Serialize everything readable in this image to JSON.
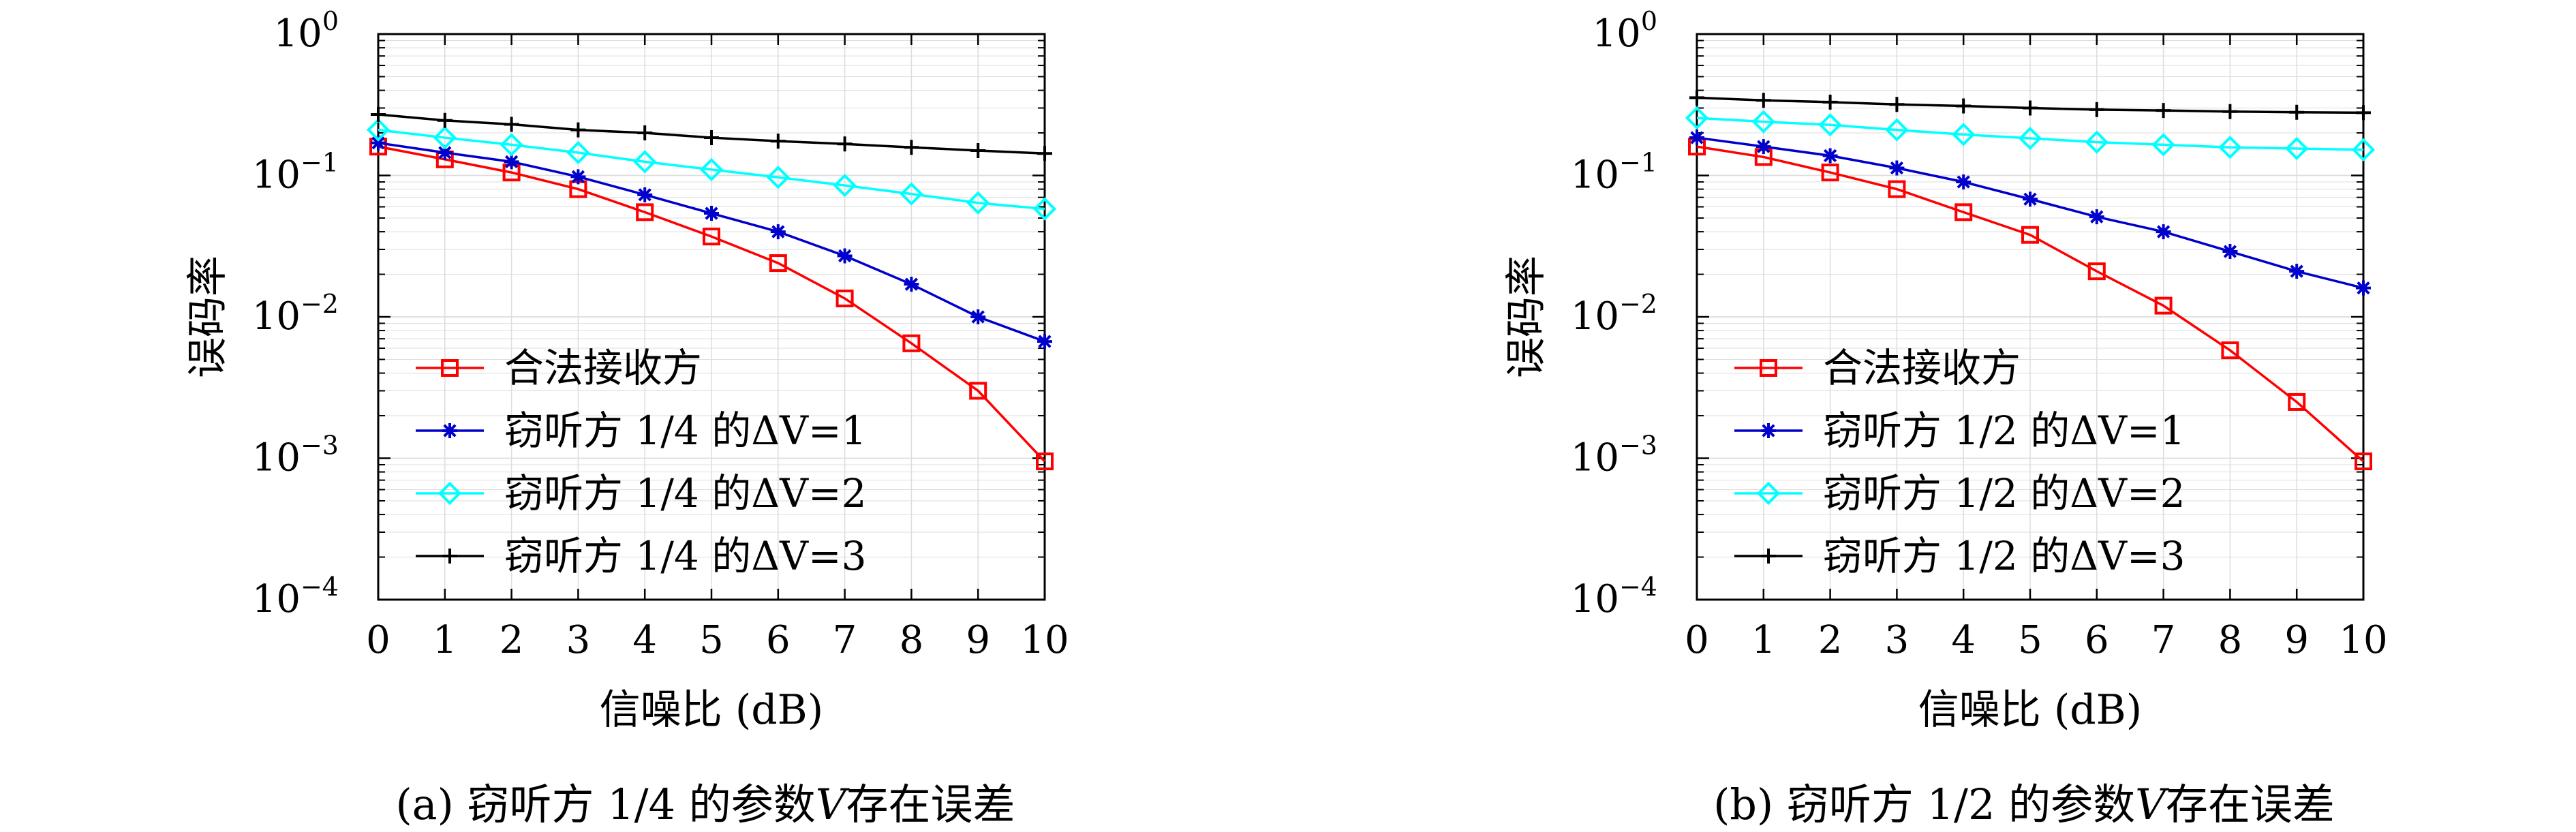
{
  "colors": {
    "legal_receiver": "#ff0000",
    "dv1": "#0000cc",
    "dv2": "#00ffff",
    "dv3": "#000000",
    "grid": "#dddddd",
    "axis": "#000000"
  },
  "captions": [
    {
      "label": "(a)",
      "text_before_v": "窃听方 1/4 的参数",
      "v": "V",
      "text_after_v": "存在误差"
    },
    {
      "label": "(b)",
      "text_before_v": "窃听方 1/2 的参数",
      "v": "V",
      "text_after_v": "存在误差"
    }
  ],
  "chart_data": [
    {
      "type": "line",
      "xlabel": "信噪比 (dB)",
      "ylabel": "误码率",
      "yscale": "log",
      "ylim": [
        0.0001,
        1
      ],
      "xlim": [
        0,
        10
      ],
      "xticks": [
        "0",
        "1",
        "2",
        "3",
        "4",
        "5",
        "6",
        "7",
        "8",
        "9",
        "10"
      ],
      "yticks": [
        {
          "value": 1,
          "base": "10",
          "exp": "0"
        },
        {
          "value": 0.1,
          "base": "10",
          "exp": "−1"
        },
        {
          "value": 0.01,
          "base": "10",
          "exp": "−2"
        },
        {
          "value": 0.001,
          "base": "10",
          "exp": "−3"
        },
        {
          "value": 0.0001,
          "base": "10",
          "exp": "−4"
        }
      ],
      "grid": true,
      "legend_position": "lower-left",
      "x": [
        0,
        1,
        2,
        3,
        4,
        5,
        6,
        7,
        8,
        9,
        10
      ],
      "series": [
        {
          "name": "合法接收方",
          "marker": "square",
          "color_key": "legal_receiver",
          "values": [
            0.16,
            0.13,
            0.105,
            0.08,
            0.055,
            0.037,
            0.024,
            0.0135,
            0.0065,
            0.003,
            0.00095
          ]
        },
        {
          "name": "窃听方 1/4 的ΔV=1",
          "marker": "asterisk",
          "color_key": "dv1",
          "values": [
            0.17,
            0.145,
            0.125,
            0.098,
            0.073,
            0.054,
            0.04,
            0.027,
            0.017,
            0.01,
            0.0067
          ]
        },
        {
          "name": "窃听方 1/4 的ΔV=2",
          "marker": "diamond",
          "color_key": "dv2",
          "values": [
            0.21,
            0.185,
            0.165,
            0.145,
            0.125,
            0.11,
            0.097,
            0.085,
            0.074,
            0.064,
            0.058
          ]
        },
        {
          "name": "窃听方 1/4 的ΔV=3",
          "marker": "plus",
          "color_key": "dv3",
          "values": [
            0.27,
            0.245,
            0.23,
            0.21,
            0.2,
            0.185,
            0.175,
            0.167,
            0.158,
            0.15,
            0.143
          ]
        }
      ]
    },
    {
      "type": "line",
      "xlabel": "信噪比 (dB)",
      "ylabel": "误码率",
      "yscale": "log",
      "ylim": [
        0.0001,
        1
      ],
      "xlim": [
        0,
        10
      ],
      "xticks": [
        "0",
        "1",
        "2",
        "3",
        "4",
        "5",
        "6",
        "7",
        "8",
        "9",
        "10"
      ],
      "yticks": [
        {
          "value": 1,
          "base": "10",
          "exp": "0"
        },
        {
          "value": 0.1,
          "base": "10",
          "exp": "−1"
        },
        {
          "value": 0.01,
          "base": "10",
          "exp": "−2"
        },
        {
          "value": 0.001,
          "base": "10",
          "exp": "−3"
        },
        {
          "value": 0.0001,
          "base": "10",
          "exp": "−4"
        }
      ],
      "grid": true,
      "legend_position": "lower-left",
      "x": [
        0,
        1,
        2,
        3,
        4,
        5,
        6,
        7,
        8,
        9,
        10
      ],
      "series": [
        {
          "name": "合法接收方",
          "marker": "square",
          "color_key": "legal_receiver",
          "values": [
            0.16,
            0.135,
            0.105,
            0.08,
            0.055,
            0.038,
            0.021,
            0.012,
            0.0058,
            0.0025,
            0.00095
          ]
        },
        {
          "name": "窃听方 1/2 的ΔV=1",
          "marker": "asterisk",
          "color_key": "dv1",
          "values": [
            0.185,
            0.16,
            0.138,
            0.113,
            0.09,
            0.068,
            0.051,
            0.04,
            0.029,
            0.021,
            0.016
          ]
        },
        {
          "name": "窃听方 1/2 的ΔV=2",
          "marker": "diamond",
          "color_key": "dv2",
          "values": [
            0.255,
            0.24,
            0.228,
            0.21,
            0.195,
            0.183,
            0.172,
            0.165,
            0.158,
            0.155,
            0.152
          ]
        },
        {
          "name": "窃听方 1/2 的ΔV=3",
          "marker": "plus",
          "color_key": "dv3",
          "values": [
            0.355,
            0.34,
            0.33,
            0.318,
            0.31,
            0.3,
            0.292,
            0.288,
            0.283,
            0.28,
            0.278
          ]
        }
      ]
    }
  ]
}
